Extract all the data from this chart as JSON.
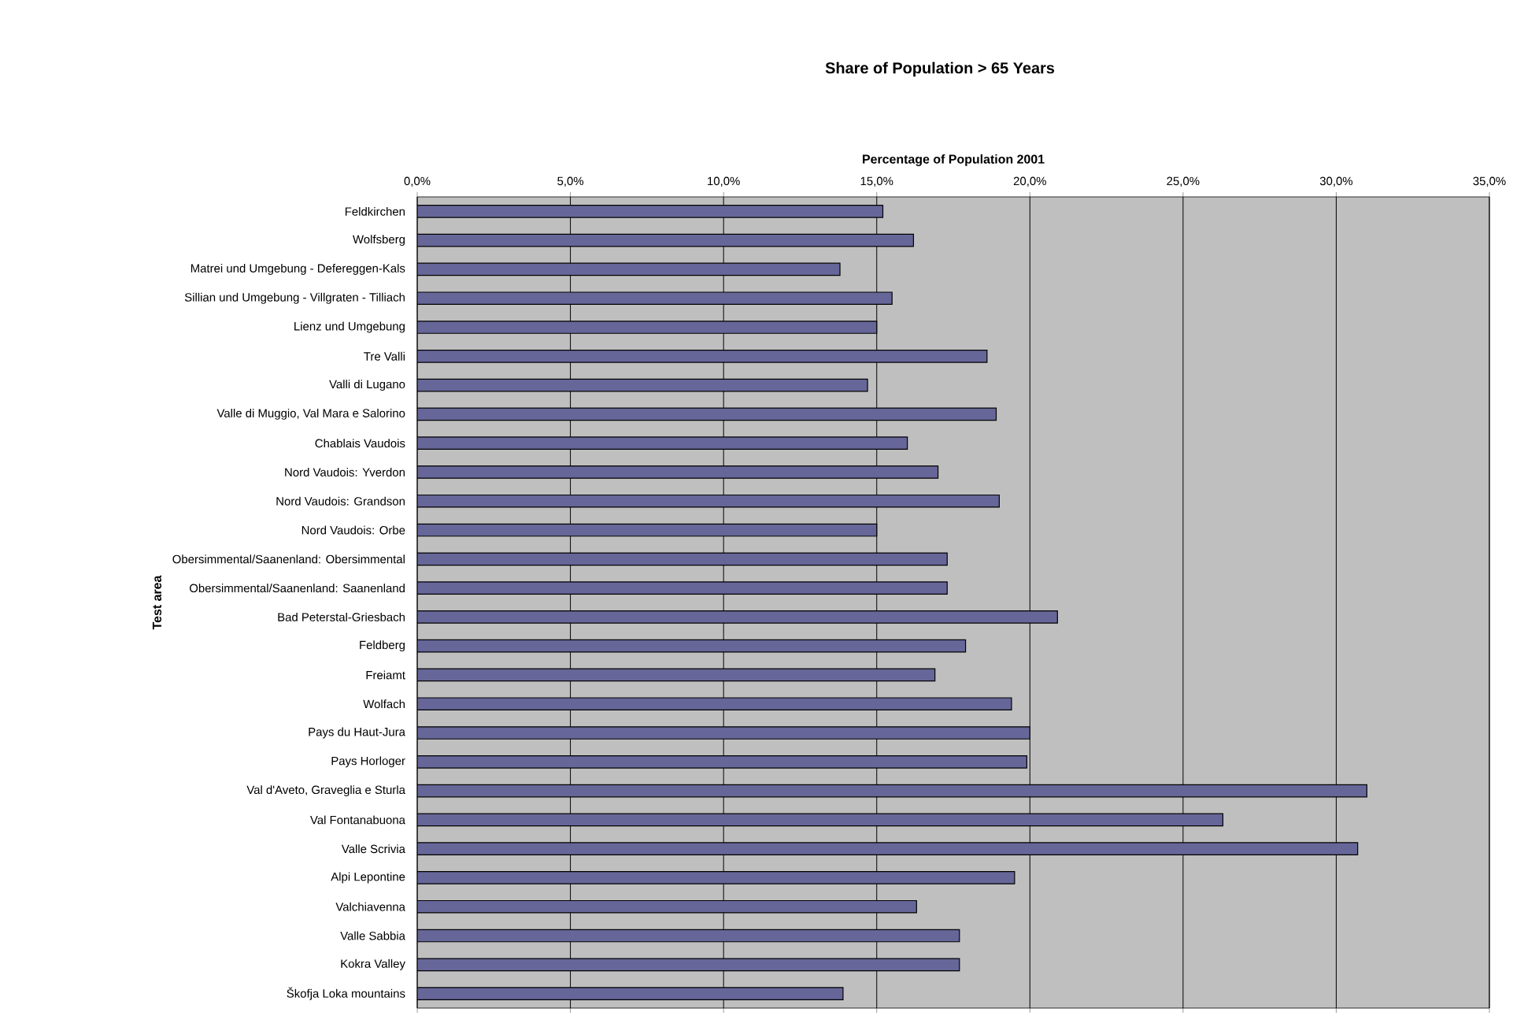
{
  "chart_data": {
    "type": "bar",
    "orientation": "horizontal",
    "title": "Share of Population > 65 Years",
    "xlabel": "Percentage of Population 2001",
    "ylabel": "Test area",
    "categories": [
      "Feldkirchen",
      "Wolfsberg",
      "Matrei und Umgebung - Defereggen-Kals",
      "Sillian und Umgebung - Villgraten - Tilliach",
      "Lienz und Umgebung",
      "Tre Valli",
      "Valli di Lugano",
      "Valle di Muggio, Val Mara e Salorino",
      "Chablais Vaudois",
      "Nord Vaudois: Yverdon",
      "Nord Vaudois: Grandson",
      "Nord Vaudois: Orbe",
      "Obersimmental/Saanenland: Obersimmental",
      "Obersimmental/Saanenland: Saanenland",
      "Bad Peterstal-Griesbach",
      "Feldberg",
      "Freiamt",
      "Wolfach",
      "Pays du Haut-Jura",
      "Pays Horloger",
      "Val d'Aveto, Graveglia e Sturla",
      "Val Fontanabuona",
      "Valle Scrivia",
      "Alpi Lepontine",
      "Valchiavenna",
      "Valle Sabbia",
      "Kokra Valley",
      "Škofja Loka mountains"
    ],
    "values": [
      15.2,
      16.2,
      13.8,
      15.5,
      15.0,
      18.6,
      14.7,
      18.9,
      16.0,
      17.0,
      19.0,
      15.0,
      17.3,
      17.3,
      20.9,
      17.9,
      16.9,
      19.4,
      20.0,
      19.9,
      31.0,
      26.3,
      30.7,
      19.5,
      16.3,
      17.7,
      17.7,
      13.9
    ],
    "color": "#666699",
    "xlim": [
      0,
      35
    ],
    "xticks": [
      {
        "value": 0,
        "label": "0,0%"
      },
      {
        "value": 5,
        "label": "5,0%"
      },
      {
        "value": 10,
        "label": "10,0%"
      },
      {
        "value": 15,
        "label": "15,0%"
      },
      {
        "value": 20,
        "label": "20,0%"
      },
      {
        "value": 25,
        "label": "25,0%"
      },
      {
        "value": 30,
        "label": "30,0%"
      },
      {
        "value": 35,
        "label": "35,0%"
      }
    ],
    "grid": "x"
  }
}
